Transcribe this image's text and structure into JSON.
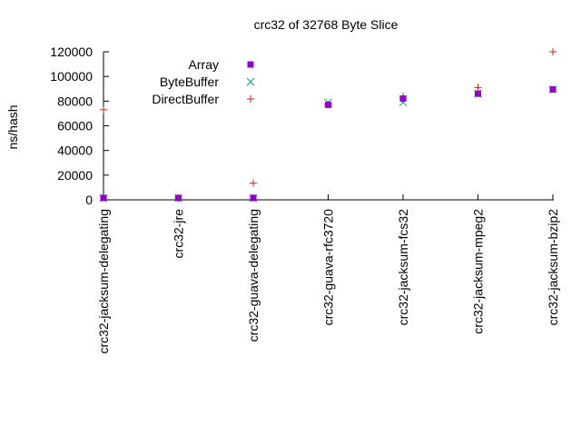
{
  "chart_data": {
    "type": "scatter",
    "title": "crc32 of 32768 Byte Slice",
    "xlabel": "",
    "ylabel": "ns/hash",
    "ylim": [
      0,
      120000
    ],
    "yticks": [
      0,
      20000,
      40000,
      60000,
      80000,
      100000,
      120000
    ],
    "ytick_labels": [
      "0",
      "20000",
      "40000",
      "60000",
      "80000",
      "100000",
      "120000"
    ],
    "categories": [
      "crc32-jacksum-delegating",
      "crc32-jre",
      "crc32-guava-delegating",
      "crc32-guava-rfc3720",
      "crc32-jacksum-fcs32",
      "crc32-jacksum-mpeg2",
      "crc32-jacksum-bzip2"
    ],
    "grid": false,
    "legend_position": "top-left",
    "series": [
      {
        "name": "Array",
        "marker": "filled-square",
        "color": "#9400d3",
        "values": [
          1500,
          1500,
          1500,
          77000,
          82000,
          86000,
          89500
        ]
      },
      {
        "name": "ByteBuffer",
        "marker": "x",
        "color": "#009e73",
        "values": [
          1500,
          1500,
          1500,
          79000,
          79000,
          86000,
          89500
        ]
      },
      {
        "name": "DirectBuffer",
        "marker": "plus",
        "color": "#e51e10",
        "values": [
          73000,
          1500,
          13500,
          77000,
          84000,
          91000,
          120000
        ]
      }
    ]
  }
}
